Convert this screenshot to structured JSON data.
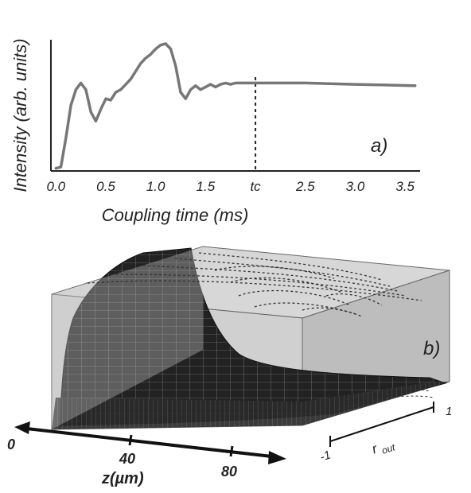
{
  "chart_data": [
    {
      "type": "line",
      "panel_label": "a)",
      "xlabel": "Coupling time (ms)",
      "ylabel": "Intensity (arb. units)",
      "xlim": [
        -0.05,
        3.65
      ],
      "ylim": [
        0,
        1.0
      ],
      "x_ticks": [
        {
          "value": 0.0,
          "label": "0.0"
        },
        {
          "value": 0.5,
          "label": "0.5"
        },
        {
          "value": 1.0,
          "label": "1.0"
        },
        {
          "value": 1.5,
          "label": "1.5"
        },
        {
          "value": 2.0,
          "label": "tc"
        },
        {
          "value": 2.5,
          "label": "2.5"
        },
        {
          "value": 3.0,
          "label": "3.0"
        },
        {
          "value": 3.5,
          "label": "3.5"
        }
      ],
      "marker_line": {
        "x": 2.0,
        "style": "dashed"
      },
      "grid": false,
      "series": [
        {
          "color": "#777777",
          "points": [
            [
              0.0,
              0.02
            ],
            [
              0.05,
              0.03
            ],
            [
              0.1,
              0.25
            ],
            [
              0.15,
              0.5
            ],
            [
              0.2,
              0.62
            ],
            [
              0.25,
              0.67
            ],
            [
              0.3,
              0.62
            ],
            [
              0.35,
              0.45
            ],
            [
              0.4,
              0.38
            ],
            [
              0.45,
              0.47
            ],
            [
              0.5,
              0.55
            ],
            [
              0.55,
              0.54
            ],
            [
              0.6,
              0.6
            ],
            [
              0.65,
              0.62
            ],
            [
              0.7,
              0.66
            ],
            [
              0.75,
              0.7
            ],
            [
              0.8,
              0.76
            ],
            [
              0.85,
              0.82
            ],
            [
              0.9,
              0.86
            ],
            [
              0.95,
              0.89
            ],
            [
              1.0,
              0.93
            ],
            [
              1.05,
              0.96
            ],
            [
              1.1,
              0.97
            ],
            [
              1.15,
              0.93
            ],
            [
              1.2,
              0.8
            ],
            [
              1.25,
              0.6
            ],
            [
              1.3,
              0.55
            ],
            [
              1.35,
              0.62
            ],
            [
              1.4,
              0.65
            ],
            [
              1.45,
              0.62
            ],
            [
              1.5,
              0.64
            ],
            [
              1.55,
              0.66
            ],
            [
              1.6,
              0.64
            ],
            [
              1.65,
              0.66
            ],
            [
              1.7,
              0.67
            ],
            [
              1.75,
              0.66
            ],
            [
              1.8,
              0.67
            ],
            [
              1.9,
              0.67
            ],
            [
              2.0,
              0.67
            ],
            [
              2.2,
              0.67
            ],
            [
              2.5,
              0.67
            ],
            [
              3.0,
              0.66
            ],
            [
              3.3,
              0.655
            ],
            [
              3.6,
              0.65
            ]
          ]
        }
      ]
    },
    {
      "type": "surface",
      "panel_label": "b)",
      "xlabel": "z(µm)",
      "x_ticks": [
        "0",
        "40",
        "80"
      ],
      "ylabel": "r",
      "ylabel_sub": "out",
      "y_ticks": [
        "-1",
        "1"
      ]
    }
  ]
}
